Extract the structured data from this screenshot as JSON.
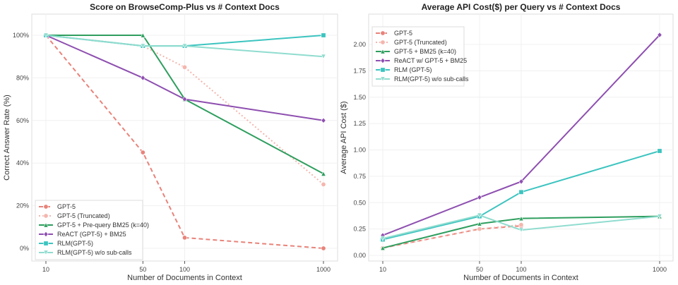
{
  "chart_data": [
    {
      "type": "line",
      "title": "Score on BrowseComp-Plus vs # Context Docs",
      "xlabel": "Number of Documents in Context",
      "ylabel": "Correct Answer Rate (%)",
      "x": [
        10,
        50,
        100,
        1000
      ],
      "x_scale": "log",
      "xticks": [
        "10",
        "50",
        "100",
        "1000"
      ],
      "ylim": [
        0,
        100
      ],
      "yticks": [
        0,
        20,
        40,
        60,
        80,
        100
      ],
      "ytick_labels": [
        "0%",
        "20%",
        "40%",
        "60%",
        "80%",
        "100%"
      ],
      "legend_position": "bottom-left",
      "grid": true,
      "series": [
        {
          "name": "GPT-5",
          "values": [
            100,
            45,
            5,
            0
          ],
          "color": "#e8837a",
          "dash": "6,4",
          "marker": "circle"
        },
        {
          "name": "GPT-5 (Truncated)",
          "values": [
            100,
            95,
            85,
            30
          ],
          "color": "#f4b6ae",
          "dash": "2,3",
          "marker": "circle"
        },
        {
          "name": "GPT-5 + Pre-query BM25 (k=40)",
          "values": [
            100,
            100,
            70,
            35
          ],
          "color": "#2e9e5e",
          "dash": "",
          "marker": "triangle"
        },
        {
          "name": "ReACT (GPT-5) + BM25",
          "values": [
            100,
            80,
            70,
            60
          ],
          "color": "#8e4fb0",
          "dash": "",
          "marker": "diamond"
        },
        {
          "name": "RLM(GPT-5)",
          "values": [
            100,
            95,
            95,
            100
          ],
          "color": "#3cc4c0",
          "dash": "",
          "marker": "square"
        },
        {
          "name": "RLM(GPT-5) w/o sub-calls",
          "values": [
            100,
            95,
            95,
            90
          ],
          "color": "#90dccf",
          "dash": "",
          "marker": "tri-down"
        }
      ]
    },
    {
      "type": "line",
      "title": "Average API Cost($) per Query vs # Context Docs",
      "xlabel": "Number of Documents in Context",
      "ylabel": "Average API Cost ($)",
      "x": [
        10,
        50,
        100,
        1000
      ],
      "x_scale": "log",
      "xticks": [
        "10",
        "50",
        "100",
        "1000"
      ],
      "ylim": [
        0,
        2.0
      ],
      "yticks": [
        0,
        0.25,
        0.5,
        0.75,
        1.0,
        1.25,
        1.5,
        1.75,
        2.0
      ],
      "ytick_labels": [
        "0.00",
        "0.25",
        "0.50",
        "0.75",
        "1.00",
        "1.25",
        "1.50",
        "1.75",
        "2.00"
      ],
      "legend_position": "top-left",
      "grid": true,
      "series": [
        {
          "name": "GPT-5",
          "values": [
            0.07,
            0.25,
            0.28,
            null
          ],
          "color": "#e8837a",
          "dash": "6,4",
          "marker": "circle"
        },
        {
          "name": "GPT-5 (Truncated)",
          "values": [
            0.07,
            0.25,
            0.29,
            null
          ],
          "color": "#f4b6ae",
          "dash": "2,3",
          "marker": "circle"
        },
        {
          "name": "GPT-5 + BM25 (k=40)",
          "values": [
            0.07,
            0.3,
            0.35,
            0.37
          ],
          "color": "#2e9e5e",
          "dash": "",
          "marker": "triangle"
        },
        {
          "name": "ReACT w/ GPT-5 + BM25",
          "values": [
            0.19,
            0.55,
            0.7,
            2.09
          ],
          "color": "#8e4fb0",
          "dash": "",
          "marker": "diamond"
        },
        {
          "name": "RLM (GPT-5)",
          "values": [
            0.15,
            0.37,
            0.6,
            0.99
          ],
          "color": "#3cc4c0",
          "dash": "",
          "marker": "square"
        },
        {
          "name": "RLM(GPT-5) w/o sub-calls",
          "values": [
            0.16,
            0.38,
            0.24,
            0.37
          ],
          "color": "#90dccf",
          "dash": "",
          "marker": "tri-down"
        }
      ]
    }
  ]
}
